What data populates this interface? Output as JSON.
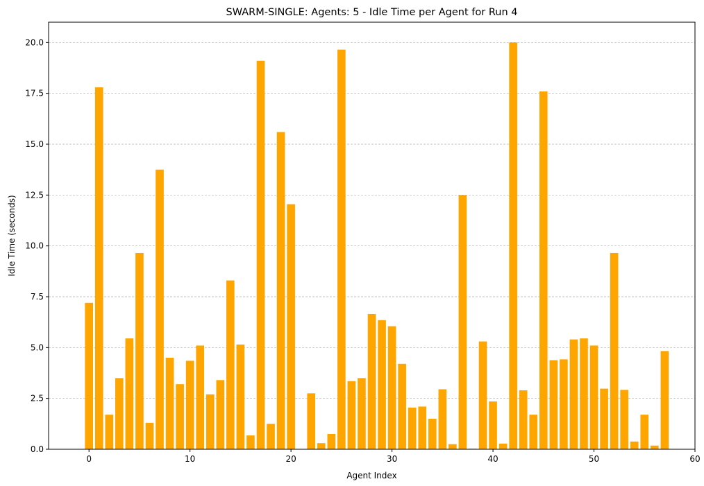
{
  "chart_data": {
    "type": "bar",
    "title": "SWARM-SINGLE: Agents: 5 - Idle Time per Agent for Run 4",
    "xlabel": "Agent Index",
    "ylabel": "Idle Time (seconds)",
    "xlim": [
      -4,
      60
    ],
    "ylim": [
      0,
      21
    ],
    "x_ticks": [
      0,
      10,
      20,
      30,
      40,
      50,
      60
    ],
    "y_ticks": [
      0,
      2.5,
      5,
      7.5,
      10,
      12.5,
      15,
      17.5,
      20
    ],
    "x_tick_labels": [
      "0",
      "10",
      "20",
      "30",
      "40",
      "50",
      "60"
    ],
    "y_tick_labels": [
      "0.0",
      "2.5",
      "5.0",
      "7.5",
      "10.0",
      "12.5",
      "15.0",
      "17.5",
      "20.0"
    ],
    "grid": "y-dashed",
    "bar_color": "#FFA500",
    "x": [
      0,
      1,
      2,
      3,
      4,
      5,
      6,
      7,
      8,
      9,
      10,
      11,
      12,
      13,
      14,
      15,
      16,
      17,
      18,
      19,
      20,
      21,
      22,
      23,
      24,
      25,
      26,
      27,
      28,
      29,
      30,
      31,
      32,
      33,
      34,
      35,
      36,
      37,
      38,
      39,
      40,
      41,
      42,
      43,
      44,
      45,
      46,
      47,
      48,
      49,
      50,
      51,
      52,
      53,
      54,
      55,
      56,
      57
    ],
    "values": [
      7.2,
      17.8,
      1.7,
      3.5,
      5.45,
      9.65,
      1.3,
      13.75,
      4.5,
      3.2,
      4.35,
      5.1,
      2.7,
      3.4,
      8.3,
      5.15,
      0.68,
      19.1,
      1.25,
      15.6,
      12.05,
      0.0,
      2.75,
      0.3,
      0.75,
      19.65,
      3.35,
      3.5,
      6.65,
      6.35,
      6.05,
      4.2,
      2.05,
      2.1,
      1.5,
      2.95,
      0.25,
      12.5,
      0.03,
      5.3,
      2.35,
      0.28,
      20.0,
      2.9,
      1.7,
      17.6,
      4.38,
      4.42,
      5.4,
      5.45,
      5.1,
      2.98,
      9.65,
      2.92,
      0.38,
      1.7,
      0.18,
      4.83
    ]
  }
}
